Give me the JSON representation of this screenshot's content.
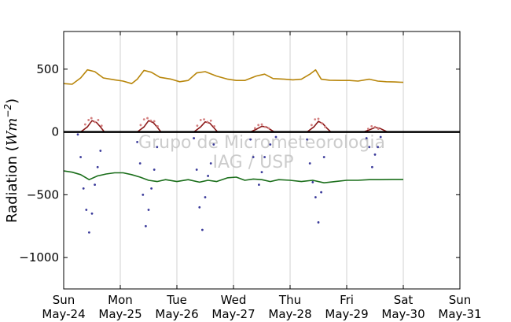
{
  "chart_data": {
    "type": "line",
    "ylabel": "Radiation (Wm⁻²)",
    "ylabel_text": "Radiation (",
    "ylabel_unit": "Wm",
    "ylabel_exp": "−2",
    "ylabel_close": ")",
    "watermark": [
      "Grupo de Micrometeorologia",
      "IAG / USP"
    ],
    "xlim": [
      0,
      7
    ],
    "ylim": [
      -1250,
      800
    ],
    "yticks": [
      500,
      0,
      -500,
      -1000
    ],
    "ytick_labels": [
      "500",
      "0",
      "−500",
      "−1000"
    ],
    "xticks": [
      0,
      1,
      2,
      3,
      4,
      5,
      6,
      7
    ],
    "xtick_labels": [
      {
        "day": "Sun",
        "date": "May-24"
      },
      {
        "day": "Mon",
        "date": "May-25"
      },
      {
        "day": "Tue",
        "date": "May-26"
      },
      {
        "day": "Wed",
        "date": "May-27"
      },
      {
        "day": "Thu",
        "date": "May-28"
      },
      {
        "day": "Fri",
        "date": "May-29"
      },
      {
        "day": "Sat",
        "date": "May-30"
      },
      {
        "day": "Sun",
        "date": "May-31"
      }
    ],
    "grid": "vertical",
    "zero_line": true,
    "series": [
      {
        "color": "#b8860b",
        "style": "line",
        "x": [
          0,
          0.15,
          0.3,
          0.42,
          0.55,
          0.7,
          0.9,
          1.05,
          1.2,
          1.3,
          1.42,
          1.55,
          1.7,
          1.9,
          2.05,
          2.2,
          2.35,
          2.5,
          2.7,
          2.9,
          3.05,
          3.2,
          3.4,
          3.55,
          3.7,
          3.9,
          4.05,
          4.2,
          4.35,
          4.45,
          4.55,
          4.7,
          4.9,
          5.05,
          5.2,
          5.4,
          5.55,
          5.7,
          5.85,
          6.0
        ],
        "y": [
          385,
          380,
          430,
          495,
          480,
          430,
          415,
          405,
          385,
          420,
          490,
          475,
          435,
          420,
          400,
          410,
          470,
          480,
          445,
          420,
          410,
          410,
          445,
          460,
          425,
          420,
          415,
          420,
          460,
          495,
          420,
          412,
          410,
          410,
          405,
          420,
          405,
          400,
          398,
          395
        ]
      },
      {
        "color": "#1a6e1a",
        "style": "line",
        "x": [
          0,
          0.15,
          0.3,
          0.45,
          0.6,
          0.75,
          0.9,
          1.05,
          1.2,
          1.35,
          1.5,
          1.65,
          1.8,
          2.0,
          2.2,
          2.4,
          2.55,
          2.7,
          2.9,
          3.05,
          3.2,
          3.35,
          3.5,
          3.65,
          3.8,
          4.0,
          4.2,
          4.4,
          4.6,
          4.8,
          5.0,
          5.2,
          5.4,
          5.6,
          5.8,
          6.0
        ],
        "y": [
          -310,
          -320,
          -340,
          -380,
          -350,
          -335,
          -325,
          -325,
          -340,
          -360,
          -385,
          -395,
          -380,
          -395,
          -380,
          -400,
          -385,
          -395,
          -365,
          -360,
          -385,
          -375,
          -380,
          -395,
          -380,
          -385,
          -395,
          -385,
          -405,
          -395,
          -385,
          -385,
          -380,
          -380,
          -378,
          -378
        ]
      },
      {
        "color": "#8b1a1a",
        "style": "line",
        "x": [
          0,
          0.3,
          0.42,
          0.5,
          0.58,
          0.65,
          0.72,
          1.3,
          1.42,
          1.5,
          1.58,
          1.65,
          1.72,
          2.3,
          2.42,
          2.5,
          2.58,
          2.65,
          2.72,
          3.3,
          3.42,
          3.5,
          3.58,
          3.65,
          3.72,
          4.3,
          4.42,
          4.5,
          4.58,
          4.65,
          4.72,
          5.3,
          5.42,
          5.5,
          5.58,
          5.65,
          5.72,
          6.0
        ],
        "y": [
          0,
          0,
          40,
          90,
          75,
          40,
          0,
          0,
          40,
          90,
          75,
          40,
          0,
          0,
          40,
          80,
          70,
          35,
          0,
          0,
          25,
          45,
          40,
          20,
          0,
          0,
          40,
          85,
          65,
          30,
          0,
          0,
          20,
          35,
          30,
          15,
          0,
          0
        ]
      },
      {
        "color": "#d48080",
        "style": "dots",
        "x": [
          0.38,
          0.44,
          0.49,
          0.55,
          0.61,
          0.67,
          1.36,
          1.42,
          1.48,
          1.54,
          1.6,
          1.66,
          2.36,
          2.42,
          2.48,
          2.54,
          2.6,
          2.66,
          3.38,
          3.44,
          3.5,
          3.56,
          3.62,
          4.38,
          4.44,
          4.5,
          4.56,
          4.62,
          5.38,
          5.44,
          5.5,
          5.56
        ],
        "y": [
          60,
          95,
          110,
          80,
          95,
          50,
          55,
          100,
          110,
          90,
          85,
          45,
          50,
          95,
          100,
          80,
          90,
          45,
          30,
          55,
          60,
          40,
          30,
          55,
          100,
          105,
          70,
          40,
          25,
          45,
          40,
          25
        ]
      },
      {
        "color": "#3a3a9a",
        "style": "dots",
        "x": [
          0.25,
          0.3,
          0.35,
          0.4,
          0.45,
          0.5,
          0.55,
          0.6,
          0.65,
          1.3,
          1.35,
          1.4,
          1.45,
          1.5,
          1.55,
          1.6,
          1.65,
          2.3,
          2.35,
          2.4,
          2.45,
          2.5,
          2.55,
          2.6,
          2.65,
          3.3,
          3.35,
          3.45,
          3.5,
          3.55,
          3.65,
          3.75,
          4.3,
          4.35,
          4.4,
          4.45,
          4.5,
          4.55,
          4.6,
          5.35,
          5.4,
          5.45,
          5.5,
          5.55,
          5.6
        ],
        "y": [
          -20,
          -200,
          -450,
          -620,
          -800,
          -650,
          -420,
          -280,
          -150,
          -80,
          -250,
          -500,
          -750,
          -620,
          -450,
          -300,
          -120,
          -50,
          -300,
          -600,
          -780,
          -520,
          -350,
          -250,
          -100,
          -60,
          -200,
          -420,
          -320,
          -200,
          -100,
          -40,
          -60,
          -250,
          -400,
          -520,
          -720,
          -480,
          -200,
          -50,
          -120,
          -280,
          -180,
          -120,
          -40
        ]
      }
    ]
  }
}
